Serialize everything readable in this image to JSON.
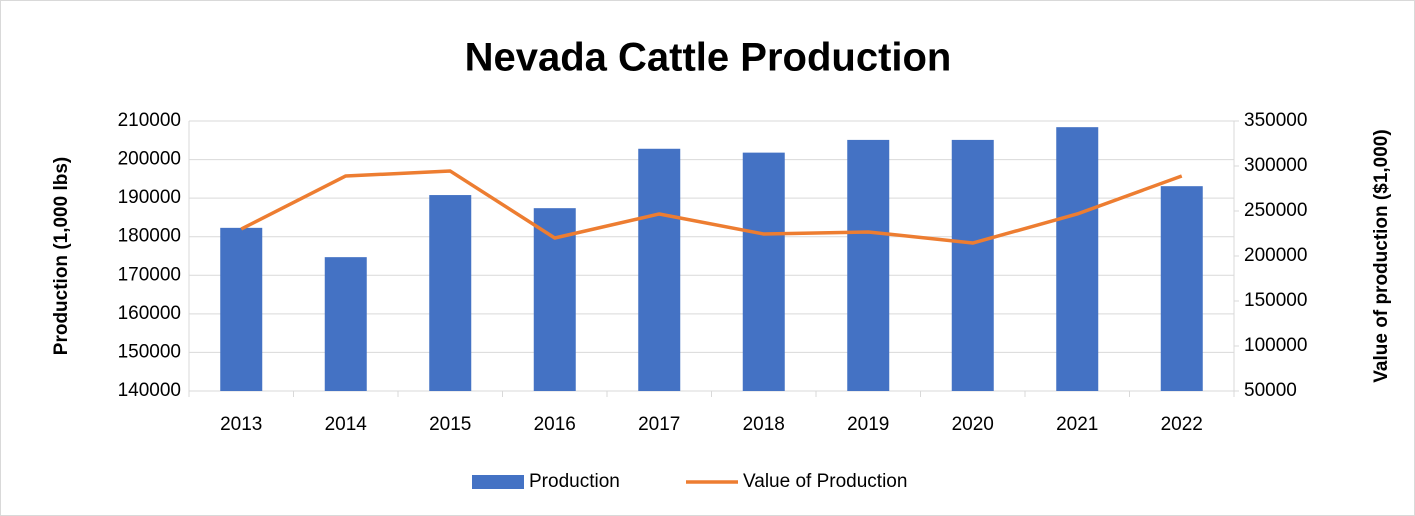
{
  "chart_data": {
    "type": "bar-line",
    "title": "Nevada Cattle Production",
    "categories": [
      "2013",
      "2014",
      "2015",
      "2016",
      "2017",
      "2018",
      "2019",
      "2020",
      "2021",
      "2022"
    ],
    "series": [
      {
        "name": "Production",
        "type": "bar",
        "color": "#4472c4",
        "values": [
          182300,
          174700,
          190800,
          187400,
          202800,
          201800,
          205100,
          205100,
          208400,
          193100
        ]
      },
      {
        "name": "Value of Production",
        "type": "line",
        "axis": "y2",
        "color": "#ed7d31",
        "values": [
          230000,
          288900,
          294400,
          220000,
          246700,
          224400,
          226700,
          214400,
          246700,
          288900
        ]
      }
    ],
    "ylabel": "Production (1,000 lbs)",
    "y2label": "Value of production ($1,000)",
    "ylim": [
      140000,
      210000
    ],
    "yticks": [
      140000,
      150000,
      160000,
      170000,
      180000,
      190000,
      200000,
      210000
    ],
    "y2lim": [
      50000,
      350000
    ],
    "y2ticks": [
      50000,
      100000,
      150000,
      200000,
      250000,
      300000,
      350000
    ],
    "grid": true,
    "legend": "bottom"
  }
}
